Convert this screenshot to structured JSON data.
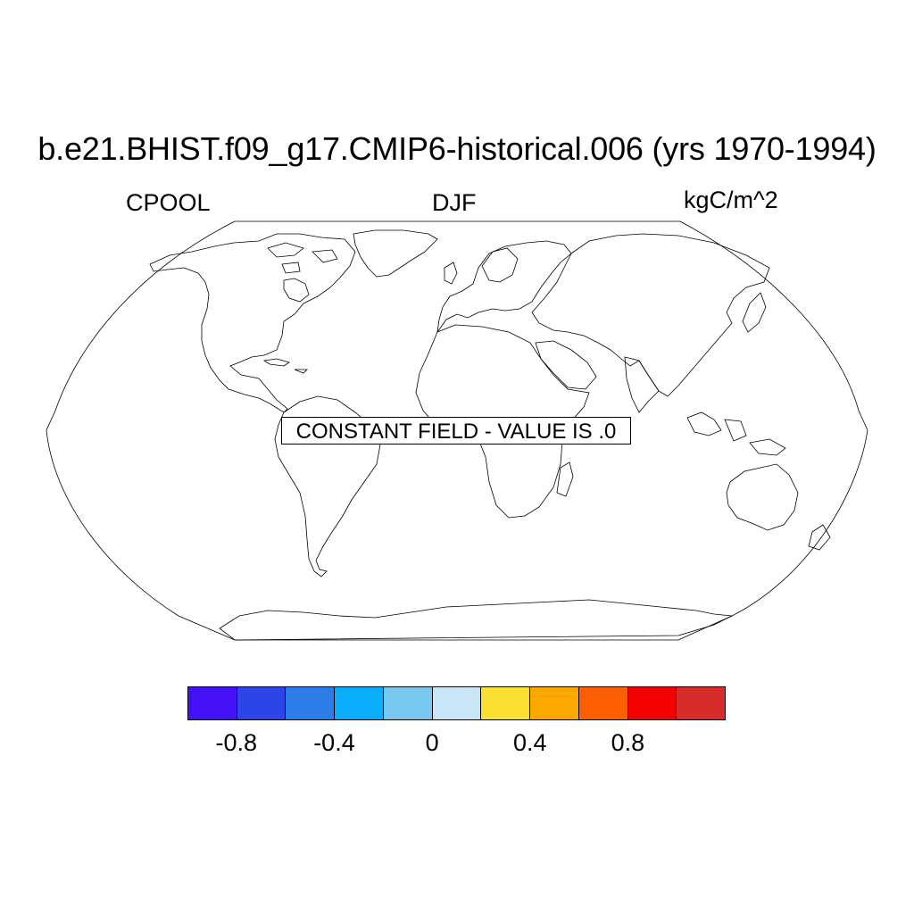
{
  "title": "b.e21.BHIST.f09_g17.CMIP6-historical.006 (yrs 1970-1994)",
  "left_label": "CPOOL",
  "center_label": "DJF",
  "right_label": "kgC/m^2",
  "notice": "CONSTANT FIELD - VALUE IS .0",
  "map": {
    "projection": "Robinson",
    "coastlines": true,
    "field": "CPOOL",
    "constant_value": 0.0
  },
  "colorbar": {
    "colors": [
      "#4410f5",
      "#2d45e6",
      "#2d7de8",
      "#0aaefc",
      "#78c8f0",
      "#c8e6f8",
      "#fde034",
      "#fda800",
      "#fd5f00",
      "#f40000",
      "#d62c2c"
    ],
    "tick_labels": [
      {
        "value": -0.8,
        "text": "-0.8"
      },
      {
        "value": -0.4,
        "text": "-0.4"
      },
      {
        "value": 0,
        "text": "0"
      },
      {
        "value": 0.4,
        "text": "0.4"
      },
      {
        "value": 0.8,
        "text": "0.8"
      }
    ]
  }
}
